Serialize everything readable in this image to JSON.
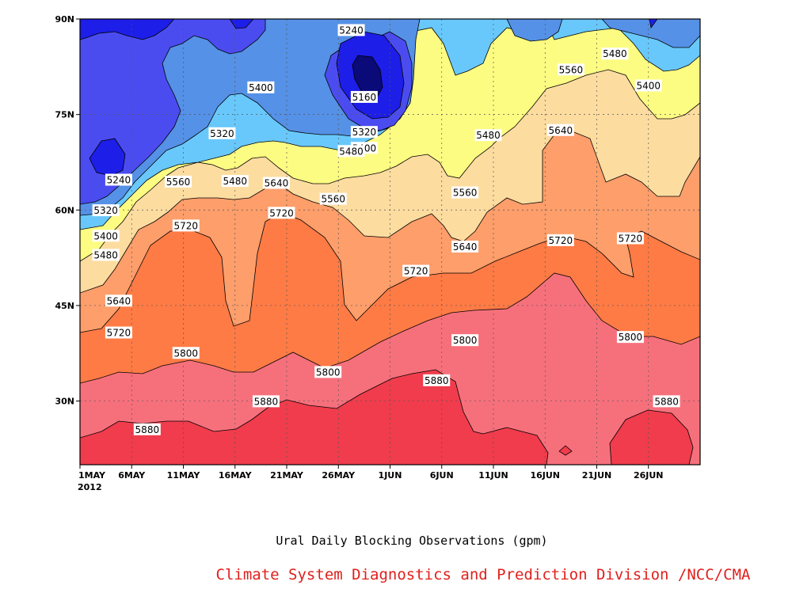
{
  "chart_data": {
    "type": "contour",
    "title": "Ural Daily Blocking Observations (gpm)",
    "credit": "Climate System Diagnostics and Prediction Division /NCC/CMA",
    "x_ticks": [
      "1MAY",
      "6MAY",
      "11MAY",
      "16MAY",
      "21MAY",
      "26MAY",
      "1JUN",
      "6JUN",
      "11JUN",
      "16JUN",
      "21JUN",
      "26JUN"
    ],
    "x_year": "2012",
    "y_ticks": [
      "30N",
      "45N",
      "60N",
      "75N",
      "90N"
    ],
    "xlim_days": [
      0,
      60
    ],
    "ylim_lat": [
      20,
      90
    ],
    "contour_levels": [
      5160,
      5240,
      5320,
      5400,
      5480,
      5560,
      5640,
      5720,
      5800,
      5880
    ],
    "grid": true,
    "contour_labels": [
      {
        "text": "5240",
        "day": 10.5,
        "lat": 88.2
      },
      {
        "text": "5160",
        "day": 11.0,
        "lat": 77.7
      },
      {
        "text": "5320",
        "day": 11.0,
        "lat": 72.2
      },
      {
        "text": "5400",
        "day": 11.0,
        "lat": 69.7
      },
      {
        "text": "5480",
        "day": 10.5,
        "lat": 69.2
      },
      {
        "text": "5400",
        "day": 7.0,
        "lat": 79.2
      },
      {
        "text": "5320",
        "day": 5.5,
        "lat": 72.0
      },
      {
        "text": "5240",
        "day": 1.5,
        "lat": 64.7
      },
      {
        "text": "5320",
        "day": 1.0,
        "lat": 59.9
      },
      {
        "text": "5400",
        "day": 1.0,
        "lat": 55.9
      },
      {
        "text": "5480",
        "day": 1.0,
        "lat": 52.9
      },
      {
        "text": "5560",
        "day": 3.8,
        "lat": 64.4
      },
      {
        "text": "5480",
        "day": 6.0,
        "lat": 64.5
      },
      {
        "text": "5640",
        "day": 7.6,
        "lat": 64.2
      },
      {
        "text": "5560",
        "day": 9.8,
        "lat": 61.7
      },
      {
        "text": "5720",
        "day": 4.1,
        "lat": 57.5
      },
      {
        "text": "5720",
        "day": 7.8,
        "lat": 59.5
      },
      {
        "text": "5640",
        "day": 1.5,
        "lat": 45.7
      },
      {
        "text": "5720",
        "day": 1.5,
        "lat": 40.7
      },
      {
        "text": "5800",
        "day": 4.1,
        "lat": 37.5
      },
      {
        "text": "5800",
        "day": 9.6,
        "lat": 34.5
      },
      {
        "text": "5880",
        "day": 7.2,
        "lat": 29.9
      },
      {
        "text": "5880",
        "day": 2.6,
        "lat": 25.5
      },
      {
        "text": "5480",
        "day": 15.8,
        "lat": 71.7
      },
      {
        "text": "5560",
        "day": 14.9,
        "lat": 62.7
      },
      {
        "text": "5640",
        "day": 14.9,
        "lat": 54.2
      },
      {
        "text": "5720",
        "day": 13.0,
        "lat": 50.4
      },
      {
        "text": "5800",
        "day": 14.9,
        "lat": 39.5
      },
      {
        "text": "5880",
        "day": 13.8,
        "lat": 33.2
      },
      {
        "text": "5640",
        "day": 18.6,
        "lat": 72.5
      },
      {
        "text": "5560",
        "day": 19.0,
        "lat": 82.0
      },
      {
        "text": "5480",
        "day": 20.7,
        "lat": 84.5
      },
      {
        "text": "5400",
        "day": 22.0,
        "lat": 79.5
      },
      {
        "text": "5720",
        "day": 18.6,
        "lat": 55.2
      },
      {
        "text": "5720",
        "day": 21.3,
        "lat": 55.5
      },
      {
        "text": "5800",
        "day": 21.3,
        "lat": 40.0
      },
      {
        "text": "5880",
        "day": 22.7,
        "lat": 29.9
      }
    ]
  }
}
